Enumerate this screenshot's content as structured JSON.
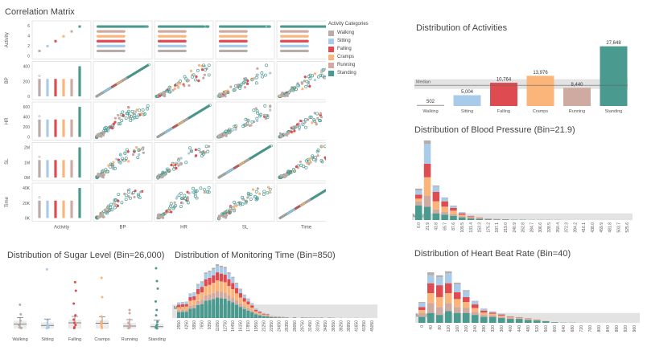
{
  "colors": {
    "Walking": "#b9aba6",
    "Sitting": "#a7cbe8",
    "Falling": "#de4b51",
    "Cramps": "#fbb47a",
    "Running": "#cfaaa0",
    "Standing": "#4b9a8f"
  },
  "titles": {
    "corr": "Correlation Matrix",
    "dist_act": "Distribution of Activities",
    "dist_bp": "Distribution of Blood Pressure (Bin=21.9)",
    "dist_sugar": "Distribution of Sugar Level (Bin=26,000)",
    "dist_time": "Distribution of Monitoring Time (Bin=850)",
    "dist_hb": "Distribution of Heart Beat Rate (Bin=40)"
  },
  "legend": {
    "title": "Activity Categories",
    "items": [
      "Walking",
      "Sitting",
      "Falling",
      "Cramps",
      "Running",
      "Standing"
    ]
  },
  "chart_data": [
    {
      "id": "correlation_matrix",
      "type": "scatter",
      "title": "Correlation Matrix",
      "variables": [
        "Activity",
        "BP",
        "HR",
        "SL",
        "Time"
      ],
      "row_ticks": {
        "Activity": [
          "0",
          "2",
          "4",
          "6"
        ],
        "BP": [
          "0",
          "200",
          "400"
        ],
        "HR": [
          "0",
          "200",
          "400",
          "600"
        ],
        "SL": [
          "0M",
          "1M",
          "2M"
        ],
        "Time": [
          "0K",
          "20K",
          "40K"
        ]
      },
      "activity_codes": {
        "Walking": 1,
        "Sitting": 2,
        "Falling": 3,
        "Cramps": 4,
        "Running": 5,
        "Standing": 6
      }
    },
    {
      "id": "activities",
      "type": "bar",
      "title": "Distribution of Activities",
      "categories": [
        "Walking",
        "Sitting",
        "Falling",
        "Cramps",
        "Running",
        "Standing"
      ],
      "values": [
        502,
        5004,
        10764,
        13976,
        8440,
        27648
      ],
      "value_labels": [
        "502",
        "5,004",
        "10,764",
        "13,976",
        "8,440",
        "27,648"
      ],
      "ylim": [
        0,
        29000
      ],
      "median_label": "Median",
      "median_band": [
        7900,
        12400
      ]
    },
    {
      "id": "blood_pressure",
      "type": "bar",
      "stacked": true,
      "title": "Distribution of Blood Pressure (Bin=21.9)",
      "categories": [
        "0.0",
        "21.9",
        "43.8",
        "65.7",
        "87.6",
        "109.5",
        "131.4",
        "153.3",
        "175.2",
        "197.1",
        "219.0",
        "240.9",
        "262.8",
        "284.7",
        "306.6",
        "328.5",
        "350.4",
        "372.3",
        "394.2",
        "416.1",
        "438.0",
        "459.9",
        "481.8",
        "503.7",
        "525.6"
      ],
      "series": [
        {
          "name": "Standing",
          "values": [
            11,
            10,
            5,
            4,
            3,
            2,
            1.2,
            0.8,
            0.5,
            0.4,
            0.3,
            0.2,
            0.2,
            0.1,
            0.1,
            0.1,
            0.1,
            0,
            0,
            0,
            0,
            0,
            0,
            0,
            0
          ]
        },
        {
          "name": "Running",
          "values": [
            3,
            8,
            3,
            2,
            1.5,
            0.8,
            0.4,
            0.3,
            0.2,
            0.1,
            0,
            0,
            0,
            0,
            0,
            0,
            0,
            0,
            0,
            0,
            0,
            0,
            0,
            0,
            0
          ]
        },
        {
          "name": "Cramps",
          "values": [
            2,
            14,
            6,
            4,
            2.5,
            1.2,
            0.6,
            0.4,
            0.2,
            0.1,
            0.1,
            0,
            0,
            0,
            0,
            0,
            0,
            0,
            0,
            0,
            0,
            0,
            0,
            0,
            0
          ]
        },
        {
          "name": "Falling",
          "values": [
            3,
            10,
            7,
            4,
            2,
            1,
            0.6,
            0.3,
            0.2,
            0.1,
            0.1,
            0,
            0,
            0,
            0,
            0,
            0,
            0,
            0,
            0,
            0,
            0,
            0,
            0,
            0
          ]
        },
        {
          "name": "Sitting",
          "values": [
            3,
            15,
            4,
            2.5,
            1.5,
            0.8,
            0.4,
            0.2,
            0.1,
            0.1,
            0,
            0,
            0,
            0,
            0,
            0,
            0,
            0,
            0,
            0,
            0,
            0,
            0,
            0,
            0
          ]
        },
        {
          "name": "Walking",
          "values": [
            1.5,
            2.5,
            0.8,
            0.4,
            0.3,
            0.1,
            0.1,
            0,
            0,
            0,
            0,
            0,
            0,
            0,
            0,
            0,
            0,
            0,
            0,
            0,
            0,
            0,
            0,
            0,
            0
          ]
        }
      ],
      "ylim": [
        0,
        60
      ],
      "median_label": "Median",
      "median_band": [
        0,
        5
      ]
    },
    {
      "id": "sugar_level",
      "type": "scatter",
      "title": "Distribution of Sugar Level (Bin=26,000)",
      "categories": [
        "Walking",
        "Sitting",
        "Falling",
        "Cramps",
        "Running",
        "Standing"
      ],
      "points": [
        [
          0.6,
          0.9,
          2.0,
          4.0,
          7.0,
          11.5
        ],
        [
          0.5,
          0.8,
          1.5,
          2.2,
          4.0,
          28.0
        ],
        [
          0.5,
          1.0,
          2.0,
          3.0,
          4.5,
          6.5,
          12.0,
          18.0,
          22.0
        ],
        [
          0.6,
          1.0,
          1.8,
          2.5,
          3.5,
          6.0,
          15.0,
          24.0
        ],
        [
          0.5,
          0.8,
          1.2,
          2.0,
          3.0,
          4.5,
          7.5,
          9.0
        ],
        [
          0.4,
          0.7,
          1.0,
          1.5,
          2.2,
          3.5,
          6.5,
          9.0,
          13.0,
          19.0,
          22.5,
          28.5
        ]
      ],
      "box_mid": [
        2.5,
        1.8,
        3.0,
        2.8,
        1.5,
        1.2
      ],
      "ylim": [
        0,
        30
      ]
    },
    {
      "id": "monitoring_time",
      "type": "bar",
      "stacked": true,
      "title": "Distribution of Monitoring Time (Bin=850)",
      "categories": [
        "2550",
        "4250",
        "5950",
        "7650",
        "9350",
        "11050",
        "12750",
        "14450",
        "16150",
        "17850",
        "19550",
        "21250",
        "22950",
        "24650",
        "26350",
        "28050",
        "29750",
        "31450",
        "33150",
        "34850",
        "36550",
        "38250",
        "39950",
        "41650",
        "43350",
        "45050"
      ],
      "ylim": [
        0,
        50
      ],
      "median_label": "Median",
      "median_band": [
        0,
        5
      ]
    },
    {
      "id": "heart_beat",
      "type": "bar",
      "stacked": true,
      "title": "Distribution of Heart Beat Rate (Bin=40)",
      "categories": [
        "0",
        "40",
        "80",
        "120",
        "160",
        "200",
        "240",
        "280",
        "320",
        "360",
        "400",
        "440",
        "480",
        "520",
        "560",
        "600",
        "640",
        "680",
        "720",
        "760",
        "800",
        "840",
        "880",
        "920",
        "960"
      ],
      "series": [
        {
          "name": "Standing",
          "values": [
            3,
            5,
            4,
            6,
            5,
            5,
            4,
            3,
            3,
            2.5,
            2,
            2,
            1.5,
            1.2,
            0.8,
            0.3,
            0.1,
            0.1,
            0,
            0,
            0,
            0,
            0,
            0,
            0
          ]
        },
        {
          "name": "Running",
          "values": [
            2,
            5,
            4,
            4,
            3,
            2.5,
            1.5,
            1,
            0.8,
            0.6,
            0.4,
            0.3,
            0.2,
            0.2,
            0.1,
            0,
            0,
            0,
            0,
            0,
            0,
            0,
            0,
            0,
            0
          ]
        },
        {
          "name": "Cramps",
          "values": [
            1.5,
            5,
            5,
            5,
            4,
            3,
            2,
            1.2,
            0.8,
            0.6,
            0.4,
            0.3,
            0.3,
            0.2,
            0.1,
            0,
            0,
            0,
            0,
            0,
            0,
            0,
            0,
            0,
            0
          ]
        },
        {
          "name": "Falling",
          "values": [
            1.5,
            5,
            6,
            5,
            3.5,
            2.5,
            1.8,
            1,
            0.6,
            0.5,
            0.3,
            0.2,
            0.2,
            0.1,
            0,
            0,
            0,
            0,
            0,
            0,
            0,
            0,
            0,
            0,
            0
          ]
        },
        {
          "name": "Sitting",
          "values": [
            2,
            4,
            4,
            5,
            4,
            3,
            1.5,
            0.8,
            0.5,
            0.3,
            0.2,
            0.1,
            0.1,
            0,
            0,
            0,
            0,
            0,
            0,
            0,
            0,
            0,
            0,
            0,
            0
          ]
        },
        {
          "name": "Walking",
          "values": [
            0.5,
            1.5,
            1,
            1,
            0.8,
            0.5,
            0.3,
            0.2,
            0.1,
            0.1,
            0,
            0,
            0,
            0,
            0,
            0,
            0,
            0,
            0,
            0,
            0,
            0,
            0,
            0,
            0
          ]
        }
      ],
      "ylim": [
        0,
        30
      ],
      "median_label": "Median",
      "median_band": [
        0,
        5
      ]
    }
  ]
}
